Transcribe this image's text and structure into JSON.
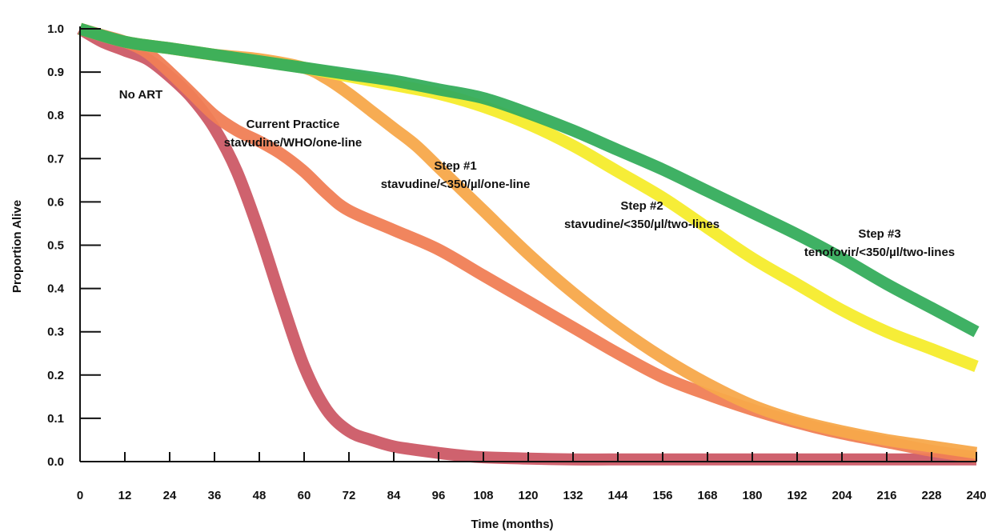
{
  "chart_data": {
    "type": "line",
    "title": "",
    "xlabel": "Time (months)",
    "ylabel": "Proportion Alive",
    "xlim": [
      0,
      240
    ],
    "ylim": [
      0,
      1.0
    ],
    "x_ticks": [
      0,
      12,
      24,
      36,
      48,
      60,
      72,
      84,
      96,
      108,
      120,
      132,
      144,
      156,
      168,
      180,
      192,
      204,
      216,
      228,
      240
    ],
    "y_ticks": [
      "0.0",
      "0.1",
      "0.2",
      "0.3",
      "0.4",
      "0.5",
      "0.6",
      "0.7",
      "0.8",
      "0.9",
      "1.0"
    ],
    "grid": false,
    "legend": "none",
    "series": [
      {
        "key": "no_art",
        "label_lines": [
          "No ART"
        ],
        "color": "#cc5a66",
        "x": [
          0,
          6,
          12,
          18,
          24,
          30,
          36,
          42,
          48,
          54,
          60,
          66,
          72,
          78,
          84,
          90,
          96,
          102,
          108,
          120,
          132,
          144,
          168,
          192,
          216,
          240
        ],
        "y": [
          1.0,
          0.97,
          0.95,
          0.93,
          0.89,
          0.84,
          0.77,
          0.67,
          0.53,
          0.37,
          0.22,
          0.12,
          0.07,
          0.05,
          0.035,
          0.027,
          0.02,
          0.014,
          0.01,
          0.007,
          0.005,
          0.005,
          0.005,
          0.005,
          0.005,
          0.005
        ]
      },
      {
        "key": "current_practice",
        "label_lines": [
          "Current Practice",
          "stavudine/WHO/one-line"
        ],
        "color": "#f07e55",
        "x": [
          0,
          6,
          12,
          18,
          24,
          30,
          36,
          42,
          48,
          54,
          60,
          66,
          72,
          84,
          96,
          108,
          120,
          132,
          144,
          156,
          168,
          180,
          192,
          204,
          216,
          228,
          240
        ],
        "y": [
          1.0,
          0.985,
          0.97,
          0.945,
          0.9,
          0.85,
          0.8,
          0.765,
          0.74,
          0.71,
          0.67,
          0.62,
          0.58,
          0.535,
          0.49,
          0.43,
          0.37,
          0.31,
          0.25,
          0.195,
          0.155,
          0.12,
          0.09,
          0.065,
          0.045,
          0.025,
          0.01
        ]
      },
      {
        "key": "step1",
        "label_lines": [
          "Step #1",
          "stavudine/<350/µl/one-line"
        ],
        "color": "#f7a84a",
        "x": [
          0,
          12,
          24,
          36,
          48,
          60,
          66,
          72,
          78,
          84,
          90,
          96,
          102,
          108,
          120,
          132,
          144,
          156,
          168,
          180,
          192,
          204,
          216,
          228,
          240
        ],
        "y": [
          1.0,
          0.97,
          0.955,
          0.94,
          0.93,
          0.91,
          0.885,
          0.85,
          0.81,
          0.77,
          0.73,
          0.68,
          0.63,
          0.58,
          0.48,
          0.39,
          0.31,
          0.24,
          0.18,
          0.13,
          0.095,
          0.07,
          0.05,
          0.035,
          0.02
        ]
      },
      {
        "key": "step2",
        "label_lines": [
          "Step #2",
          "stavudine/<350/µl/two-lines"
        ],
        "color": "#f6ec2c",
        "x": [
          0,
          12,
          24,
          36,
          48,
          60,
          72,
          84,
          96,
          108,
          120,
          132,
          144,
          156,
          168,
          180,
          192,
          204,
          216,
          228,
          240
        ],
        "y": [
          1.0,
          0.97,
          0.955,
          0.94,
          0.925,
          0.91,
          0.89,
          0.87,
          0.85,
          0.82,
          0.78,
          0.73,
          0.67,
          0.61,
          0.54,
          0.47,
          0.41,
          0.35,
          0.3,
          0.26,
          0.22
        ]
      },
      {
        "key": "step3",
        "label_lines": [
          "Step #3",
          "tenofovir/<350/µl/two-lines"
        ],
        "color": "#35ad5c",
        "x": [
          0,
          12,
          24,
          36,
          48,
          60,
          72,
          84,
          96,
          108,
          120,
          132,
          144,
          156,
          168,
          180,
          192,
          204,
          216,
          228,
          240
        ],
        "y": [
          1.0,
          0.97,
          0.955,
          0.94,
          0.925,
          0.91,
          0.895,
          0.88,
          0.86,
          0.84,
          0.805,
          0.765,
          0.72,
          0.675,
          0.625,
          0.575,
          0.525,
          0.47,
          0.41,
          0.355,
          0.3
        ]
      }
    ]
  }
}
